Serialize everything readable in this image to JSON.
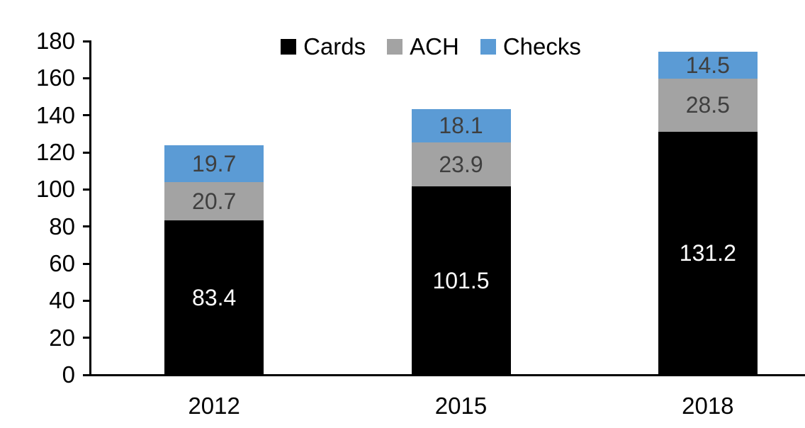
{
  "chart_data": {
    "type": "bar",
    "stacked": true,
    "title": "",
    "xlabel": "",
    "ylabel": "",
    "categories": [
      "2012",
      "2015",
      "2018"
    ],
    "series": [
      {
        "name": "Cards",
        "color": "#000000",
        "label_color": "#FFFFFF",
        "values": [
          83.4,
          101.5,
          131.2
        ]
      },
      {
        "name": "ACH",
        "color": "#A3A3A3",
        "label_color": "#3F3F3F",
        "values": [
          20.7,
          23.9,
          28.5
        ]
      },
      {
        "name": "Checks",
        "color": "#5B9BD5",
        "label_color": "#3F3F3F",
        "values": [
          19.7,
          18.1,
          14.5
        ]
      }
    ],
    "ylim": [
      0,
      180
    ],
    "yticks": [
      0,
      20,
      40,
      60,
      80,
      100,
      120,
      140,
      160,
      180
    ],
    "grid": false,
    "legend_position": "top",
    "legend_labels": [
      "Cards",
      "ACH",
      "Checks"
    ],
    "axis_color": "#000000",
    "background": "#FFFFFF"
  }
}
